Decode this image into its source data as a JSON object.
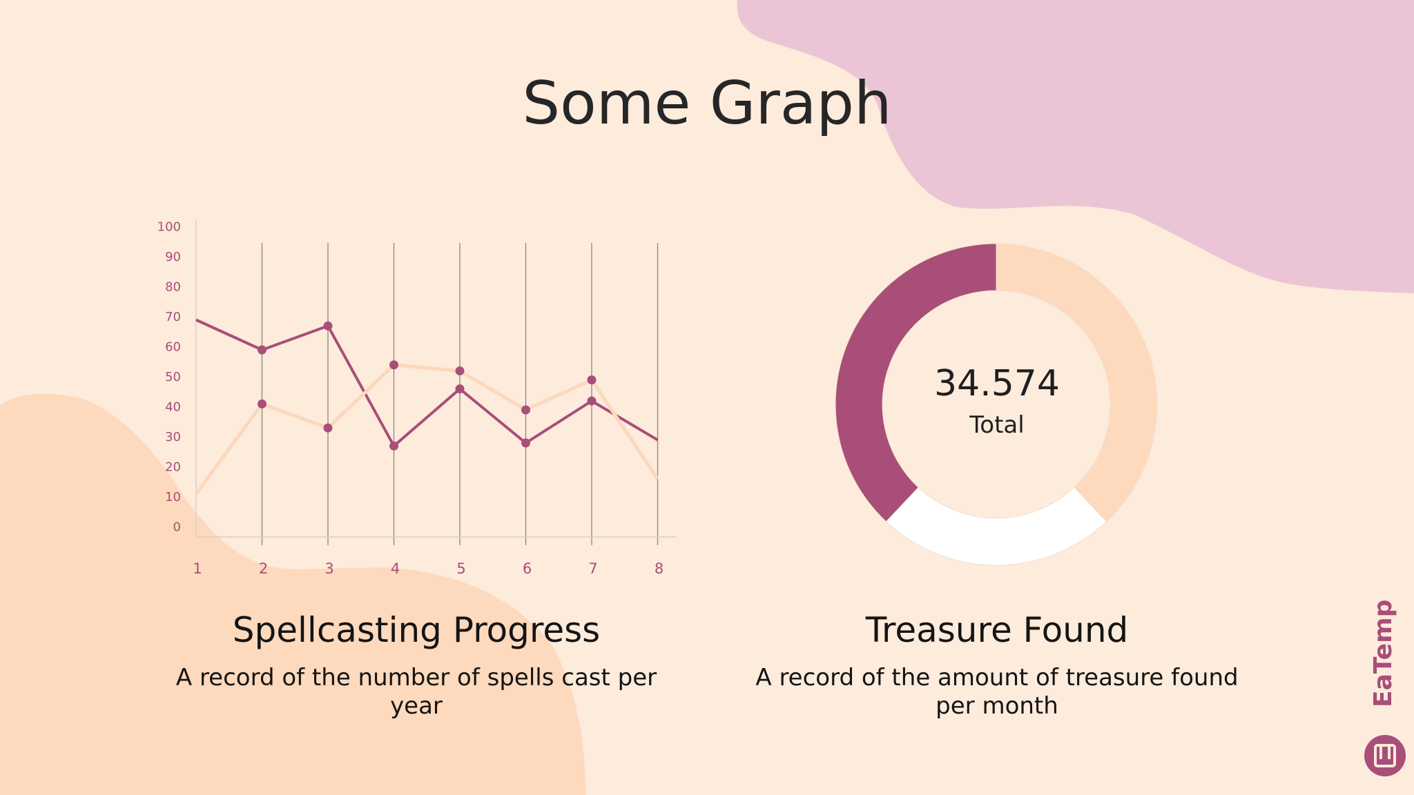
{
  "page": {
    "title": "Some Graph"
  },
  "colors": {
    "background": "#fdebdc",
    "blob_pink": "#ebc5d6",
    "blob_peach": "#fdd9bd",
    "accent_plum": "#a84e78",
    "peach_series": "#fbd8bc",
    "white": "#ffffff"
  },
  "chart_data": [
    {
      "type": "line",
      "x": [
        1,
        2,
        3,
        4,
        5,
        6,
        7,
        8
      ],
      "ylim": [
        0,
        100
      ],
      "y_ticks": [
        0,
        10,
        20,
        30,
        40,
        50,
        60,
        70,
        80,
        90,
        100
      ],
      "grid": "vertical lines at x = 2..8",
      "series": [
        {
          "values": [
            70,
            60,
            68,
            28,
            47,
            29,
            43,
            30
          ],
          "color": "#a84e78"
        },
        {
          "values": [
            12,
            42,
            34,
            55,
            53,
            40,
            50,
            17
          ],
          "color": "#fbd8bc"
        }
      ],
      "title": "Spellcasting Progress",
      "description": "A record of the number of spells cast per year"
    },
    {
      "type": "pie",
      "style": "donut",
      "center_value": "34.574",
      "center_label": "Total",
      "slices": [
        {
          "value": 38,
          "color": "#fdd9bd"
        },
        {
          "value": 24,
          "color": "#ffffff"
        },
        {
          "value": 38,
          "color": "#a84e78"
        }
      ],
      "title": "Treasure Found",
      "description": "A record of the amount of treasure found per month"
    }
  ],
  "brand": {
    "text": "EaTemp"
  }
}
